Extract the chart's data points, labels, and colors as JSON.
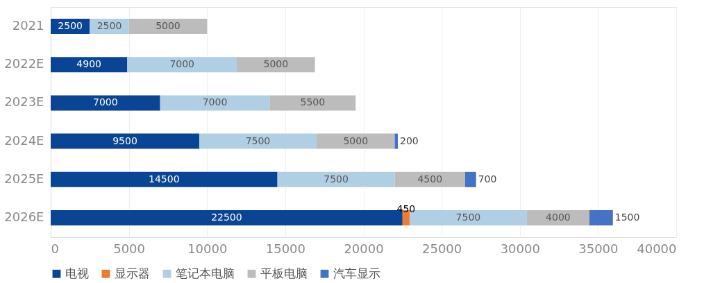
{
  "chart_data": {
    "type": "bar",
    "orientation": "horizontal",
    "stacked": true,
    "data_labels": true,
    "grid": "x",
    "legend": "bottom",
    "categories": [
      "2021",
      "2022E",
      "2023E",
      "2024E",
      "2025E",
      "2026E"
    ],
    "series": [
      {
        "name": "电视",
        "color": "#0a4595",
        "values": [
          2500,
          4900,
          7000,
          9500,
          14500,
          22500
        ]
      },
      {
        "name": "显示器",
        "color": "#ed7d31",
        "values": [
          null,
          null,
          null,
          null,
          null,
          450
        ]
      },
      {
        "name": "笔记本电脑",
        "color": "#b0cfe4",
        "values": [
          2500,
          7000,
          7000,
          7500,
          7500,
          7500
        ]
      },
      {
        "name": "平板电脑",
        "color": "#bcbcbc",
        "values": [
          5000,
          5000,
          5500,
          5000,
          4500,
          4000
        ]
      },
      {
        "name": "汽车显示",
        "color": "#4472c4",
        "values": [
          null,
          null,
          null,
          200,
          700,
          1500
        ]
      }
    ],
    "xlim": [
      0,
      40000
    ],
    "xticks": [
      0,
      5000,
      10000,
      15000,
      20000,
      25000,
      30000,
      35000,
      40000
    ]
  }
}
